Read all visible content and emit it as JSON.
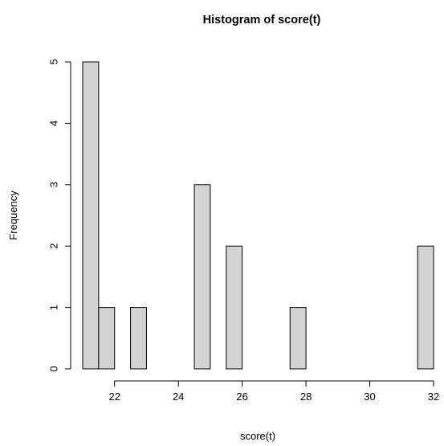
{
  "chart_data": {
    "type": "bar",
    "title": "Histogram of score(t)",
    "xlabel": "score(t)",
    "ylabel": "Frequency",
    "xlim": [
      21,
      32
    ],
    "ylim": [
      0,
      5
    ],
    "x_ticks": [
      22,
      24,
      26,
      28,
      30,
      32
    ],
    "y_ticks": [
      0,
      1,
      2,
      3,
      4,
      5
    ],
    "bin_width": 0.5,
    "bins": [
      {
        "start": 21.0,
        "end": 21.5,
        "count": 5
      },
      {
        "start": 21.5,
        "end": 22.0,
        "count": 1
      },
      {
        "start": 22.0,
        "end": 22.5,
        "count": 0
      },
      {
        "start": 22.5,
        "end": 23.0,
        "count": 1
      },
      {
        "start": 23.0,
        "end": 23.5,
        "count": 0
      },
      {
        "start": 23.5,
        "end": 24.0,
        "count": 0
      },
      {
        "start": 24.0,
        "end": 24.5,
        "count": 0
      },
      {
        "start": 24.5,
        "end": 25.0,
        "count": 3
      },
      {
        "start": 25.0,
        "end": 25.5,
        "count": 0
      },
      {
        "start": 25.5,
        "end": 26.0,
        "count": 2
      },
      {
        "start": 26.0,
        "end": 26.5,
        "count": 0
      },
      {
        "start": 26.5,
        "end": 27.0,
        "count": 0
      },
      {
        "start": 27.0,
        "end": 27.5,
        "count": 0
      },
      {
        "start": 27.5,
        "end": 28.0,
        "count": 1
      },
      {
        "start": 28.0,
        "end": 28.5,
        "count": 0
      },
      {
        "start": 28.5,
        "end": 29.0,
        "count": 0
      },
      {
        "start": 29.0,
        "end": 29.5,
        "count": 0
      },
      {
        "start": 29.5,
        "end": 30.0,
        "count": 0
      },
      {
        "start": 30.0,
        "end": 30.5,
        "count": 0
      },
      {
        "start": 30.5,
        "end": 31.0,
        "count": 0
      },
      {
        "start": 31.0,
        "end": 31.5,
        "count": 0
      },
      {
        "start": 31.5,
        "end": 32.0,
        "count": 2
      }
    ],
    "bar_fill": "#d3d3d3",
    "bar_stroke": "#000000",
    "grid": false,
    "legend": "none"
  }
}
